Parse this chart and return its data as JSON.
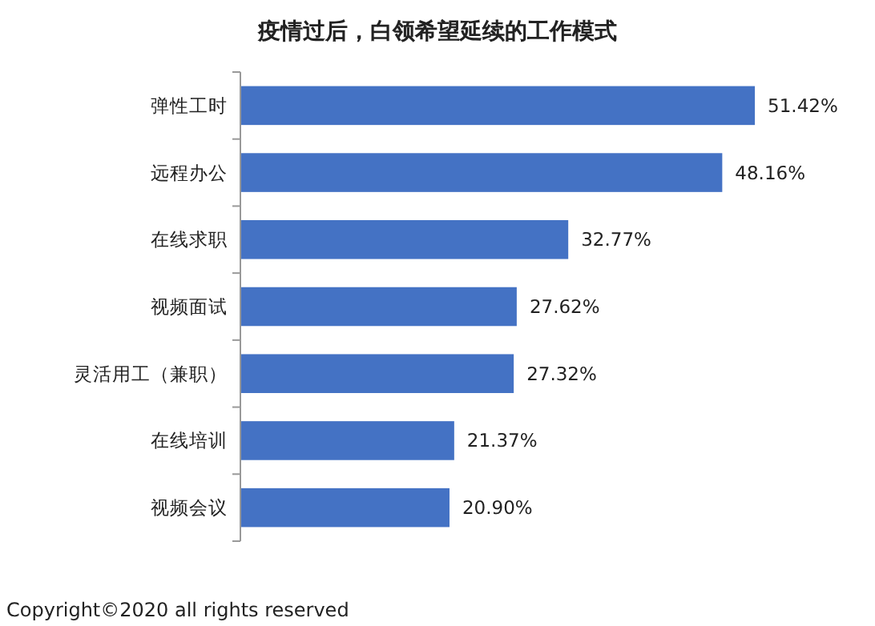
{
  "chart_data": {
    "type": "bar",
    "orientation": "horizontal",
    "title": "疫情过后，白领希望延续的工作模式",
    "categories": [
      "弹性工时",
      "远程办公",
      "在线求职",
      "视频面试",
      "灵活用工（兼职）",
      "在线培训",
      "视频会议"
    ],
    "values": [
      51.42,
      48.16,
      32.77,
      27.62,
      27.32,
      21.37,
      20.9
    ],
    "value_labels": [
      "51.42%",
      "48.16%",
      "32.77%",
      "27.62%",
      "27.32%",
      "21.37%",
      "20.90%"
    ],
    "color": "#4472c4",
    "annotations": [
      "Copyright©2020 all rights reserved"
    ]
  }
}
